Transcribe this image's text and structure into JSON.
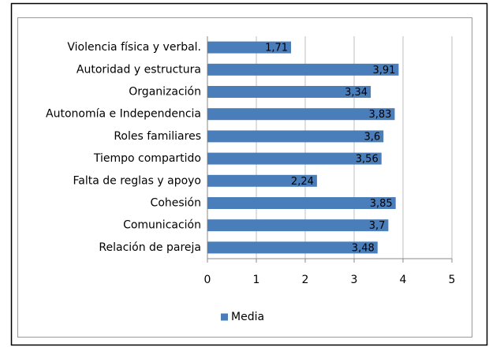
{
  "chart_data": {
    "type": "barh",
    "categories": [
      "Violencia física y verbal.",
      "Autoridad y estructura",
      "Organización",
      "Autonomía e Independencia",
      "Roles familiares",
      "Tiempo compartido",
      "Falta de reglas y apoyo",
      "Cohesión",
      "Comunicación",
      "Relación de pareja"
    ],
    "series": [
      {
        "name": "Media",
        "color": "#4a7ebb",
        "values": [
          1.71,
          3.91,
          3.34,
          3.83,
          3.6,
          3.56,
          2.24,
          3.85,
          3.7,
          3.48
        ],
        "value_labels": [
          "1,71",
          "3,91",
          "3,34",
          "3,83",
          "3,6",
          "3,56",
          "2,24",
          "3,85",
          "3,7",
          "3,48"
        ]
      }
    ],
    "xlim": [
      0,
      5
    ],
    "xticks": [
      0,
      1,
      2,
      3,
      4,
      5
    ],
    "grid": true,
    "legend": "bottom"
  }
}
